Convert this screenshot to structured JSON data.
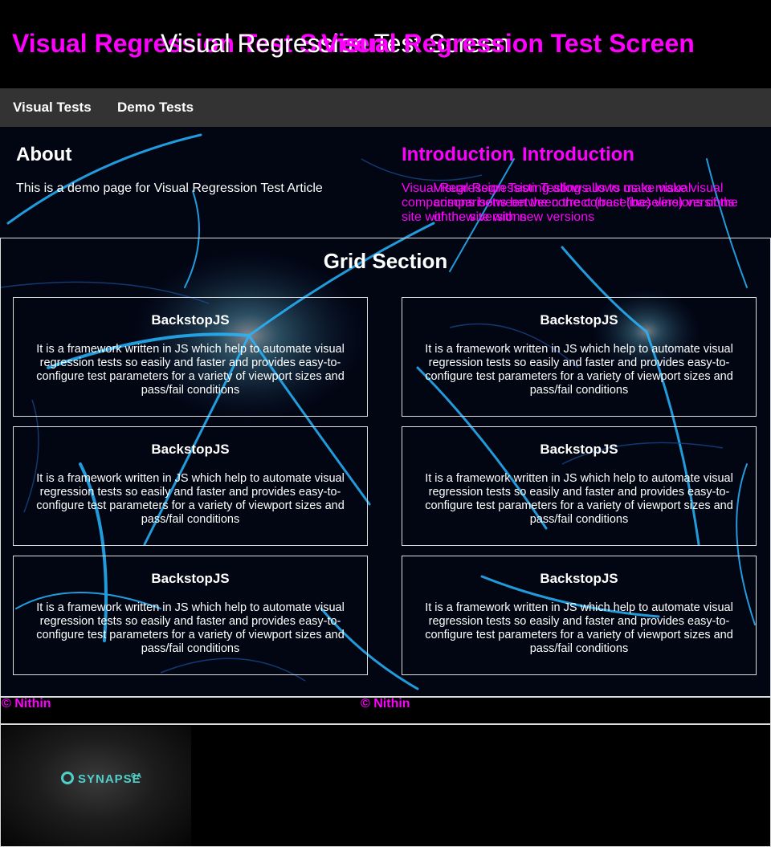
{
  "header": {
    "title_layers": [
      "Visual Regression Test Screen",
      "Visual Regression Test Screen",
      "Visual Regression Test Screen"
    ]
  },
  "nav": {
    "items": [
      "Visual Tests",
      "Demo Tests"
    ]
  },
  "about": {
    "heading": "About",
    "text": "This is a demo page for Visual Regression Test Article"
  },
  "introduction": {
    "heading": "Introduction",
    "text": "Visual Regression Testing allows us to make visual comparisons between the correct (baseline) versions of the site with new versions"
  },
  "grid": {
    "heading": "Grid Section",
    "cards": [
      {
        "title": "BackstopJS",
        "text": "It is a framework written in JS which help to automate visual regression tests so easily and faster and provides easy-to-configure test parameters for a variety of viewport sizes and pass/fail conditions"
      },
      {
        "title": "BackstopJS",
        "text": "It is a framework written in JS which help to automate visual regression tests so easily and faster and provides easy-to-configure test parameters for a variety of viewport sizes and pass/fail conditions"
      },
      {
        "title": "BackstopJS",
        "text": "It is a framework written in JS which help to automate visual regression tests so easily and faster and provides easy-to-configure test parameters for a variety of viewport sizes and pass/fail conditions"
      },
      {
        "title": "BackstopJS",
        "text": "It is a framework written in JS which help to automate visual regression tests so easily and faster and provides easy-to-configure test parameters for a variety of viewport sizes and pass/fail conditions"
      },
      {
        "title": "BackstopJS",
        "text": "It is a framework written in JS which help to automate visual regression tests so easily and faster and provides easy-to-configure test parameters for a variety of viewport sizes and pass/fail conditions"
      },
      {
        "title": "BackstopJS",
        "text": "It is a framework written in JS which help to automate visual regression tests so easily and faster and provides easy-to-configure test parameters for a variety of viewport sizes and pass/fail conditions"
      }
    ]
  },
  "footer": {
    "copyright": "© Nithin"
  },
  "logo": {
    "name": "SYNAPSE",
    "tagline": "QA"
  },
  "colors": {
    "accent": "#ff00ff",
    "nav_bg": "#333333",
    "neuron": "#28b8ff"
  }
}
